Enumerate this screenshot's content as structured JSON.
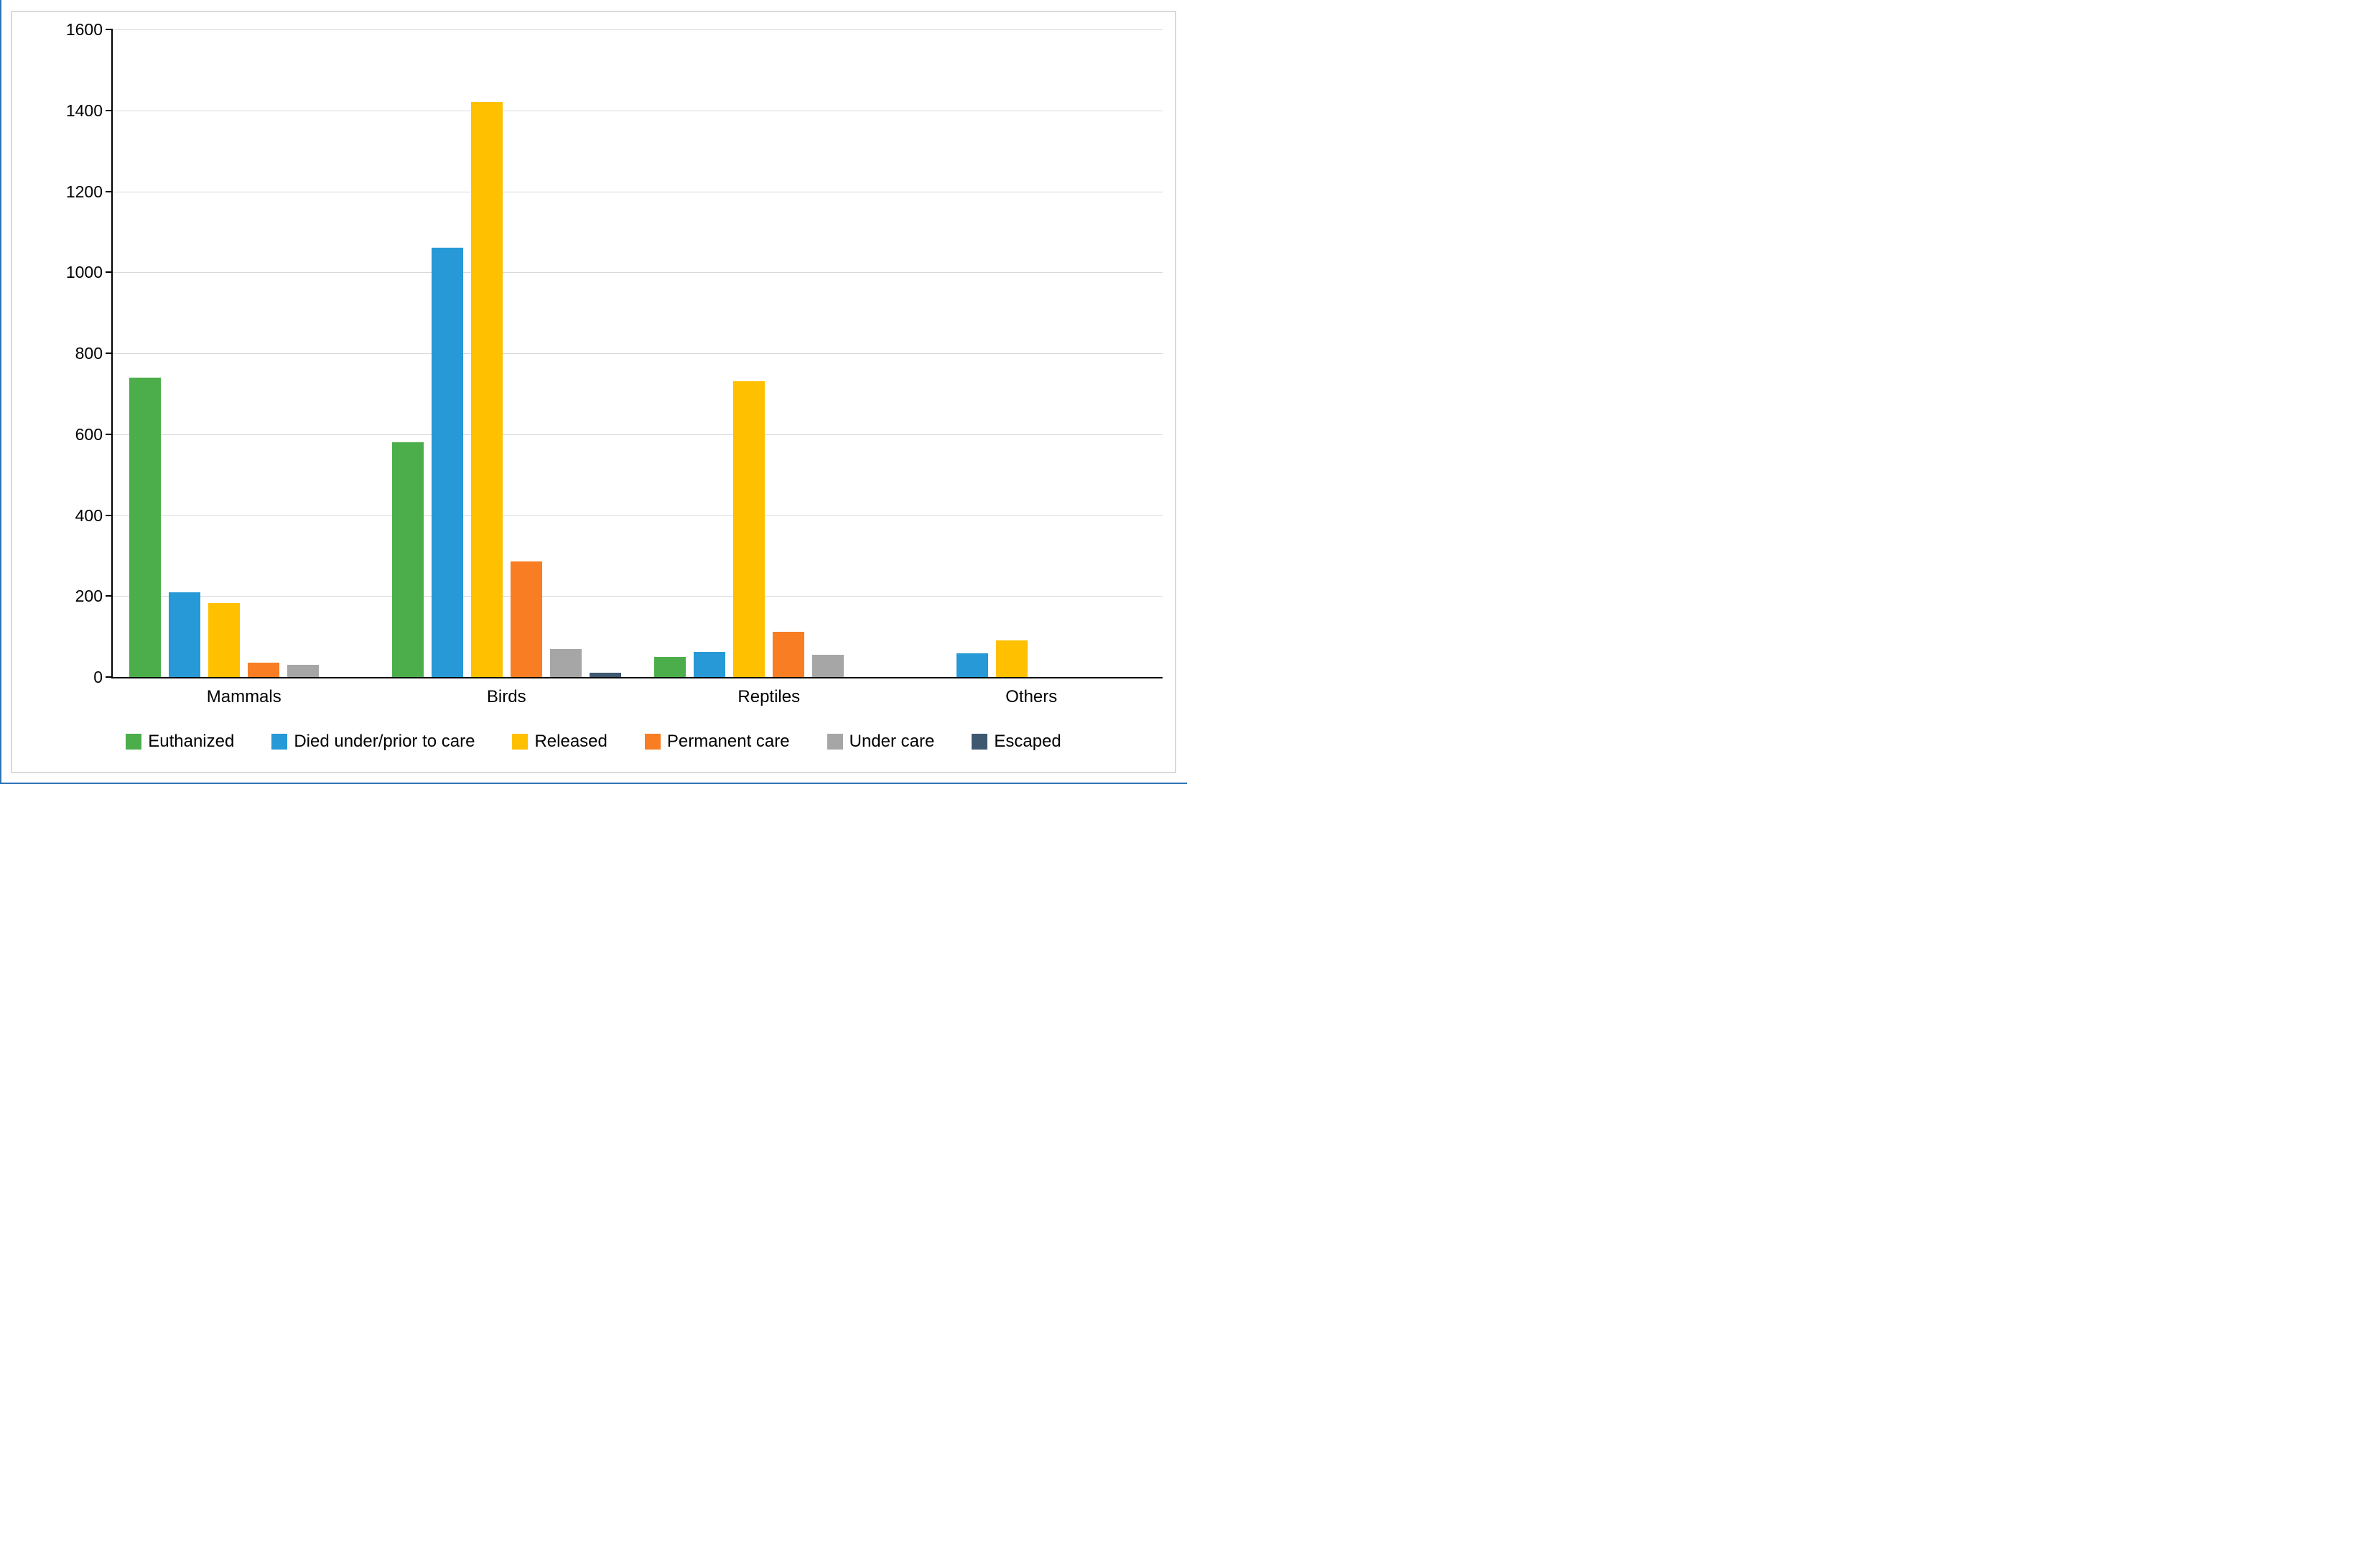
{
  "page": {
    "left_edge_color": "#2E74B5",
    "bottom_edge_color": "#2E74B5",
    "frame_border_color": "#D9D9D9",
    "background": "#FFFFFF"
  },
  "chart_data": {
    "type": "bar",
    "title": "",
    "xlabel": "",
    "ylabel": "",
    "categories": [
      "Mammals",
      "Birds",
      "Reptiles",
      "Others"
    ],
    "series": [
      {
        "name": "Euthanized",
        "color": "#4CAE4B",
        "values": [
          740,
          580,
          50,
          0
        ]
      },
      {
        "name": "Died under/prior to care",
        "color": "#2699D6",
        "values": [
          210,
          1060,
          62,
          58
        ]
      },
      {
        "name": "Released",
        "color": "#FFC000",
        "values": [
          183,
          1420,
          730,
          90
        ]
      },
      {
        "name": "Permanent care",
        "color": "#F87D23",
        "values": [
          35,
          285,
          112,
          0
        ]
      },
      {
        "name": "Under care",
        "color": "#A6A6A6",
        "values": [
          30,
          70,
          55,
          0
        ]
      },
      {
        "name": "Escaped",
        "color": "#3E5870",
        "values": [
          0,
          10,
          0,
          0
        ]
      }
    ],
    "ylim": [
      0,
      1600
    ],
    "yticks": [
      0,
      200,
      400,
      600,
      800,
      1000,
      1200,
      1400,
      1600
    ],
    "grid": true,
    "gridline_color": "#D9D9D9",
    "axis_color": "#000000",
    "legend_position": "bottom"
  }
}
